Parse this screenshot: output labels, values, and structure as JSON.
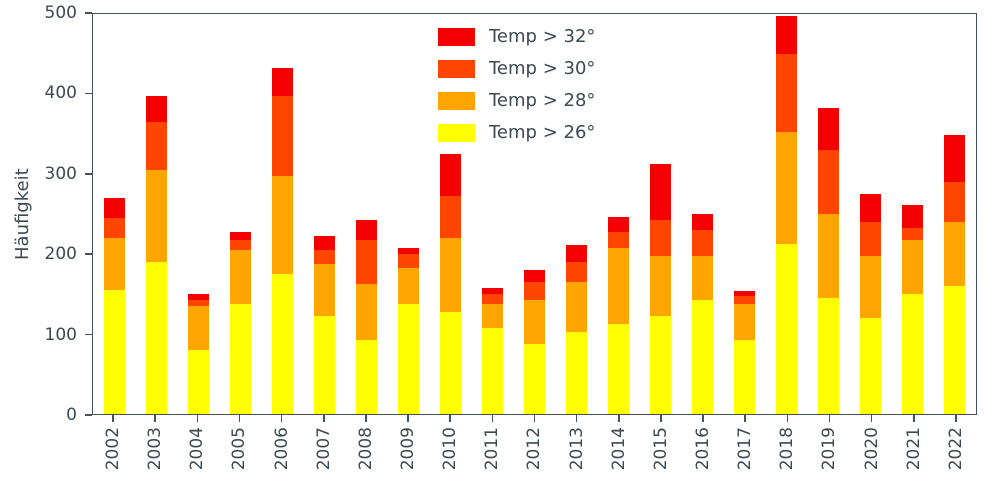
{
  "chart_data": {
    "type": "bar",
    "stacked": true,
    "title": "",
    "xlabel": "",
    "ylabel": "Häufigkeit",
    "ylim": [
      0,
      500
    ],
    "yticks": [
      0,
      100,
      200,
      300,
      400,
      500
    ],
    "grid": false,
    "legend_position": "upper center, inside plot, no frame",
    "categories": [
      "2002",
      "2003",
      "2004",
      "2005",
      "2006",
      "2007",
      "2008",
      "2009",
      "2010",
      "2011",
      "2012",
      "2013",
      "2014",
      "2015",
      "2016",
      "2017",
      "2018",
      "2019",
      "2020",
      "2021",
      "2022"
    ],
    "series": [
      {
        "name": "Temp > 32°",
        "color": "#f40000",
        "values": [
          25,
          32,
          8,
          9,
          34,
          17,
          25,
          7,
          53,
          8,
          15,
          21,
          18,
          70,
          20,
          7,
          47,
          52,
          35,
          29,
          59
        ]
      },
      {
        "name": "Temp > 30°",
        "color": "#ff4500",
        "values": [
          25,
          60,
          7,
          13,
          101,
          17,
          56,
          17,
          52,
          12,
          22,
          25,
          20,
          45,
          33,
          9,
          98,
          80,
          43,
          14,
          50
        ]
      },
      {
        "name": "Temp > 28°",
        "color": "#ffa500",
        "values": [
          65,
          115,
          55,
          67,
          122,
          65,
          69,
          46,
          92,
          31,
          56,
          62,
          95,
          76,
          55,
          46,
          140,
          105,
          77,
          68,
          80
        ]
      },
      {
        "name": "Temp > 26°",
        "color": "#ffff00",
        "values": [
          155,
          190,
          80,
          138,
          175,
          123,
          93,
          137,
          128,
          107,
          87,
          103,
          113,
          122,
          142,
          92,
          212,
          145,
          120,
          150,
          160
        ]
      }
    ],
    "axis_color": "#45525c",
    "text_color": "#3c4953"
  }
}
